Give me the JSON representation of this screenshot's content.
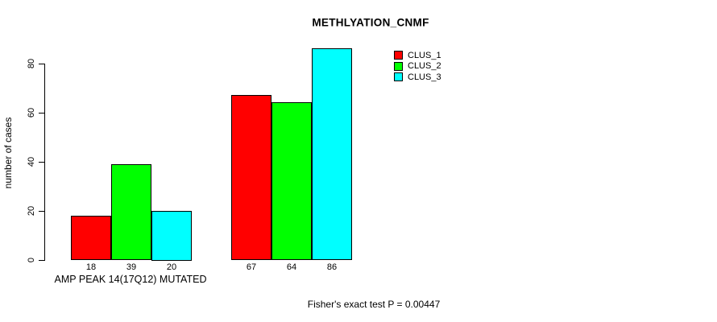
{
  "chart_data": {
    "type": "bar",
    "title": "METHLYATION_CNMF",
    "ylabel": "number of cases",
    "ylim": [
      0,
      80
    ],
    "yticks": [
      "0",
      "20",
      "40",
      "60",
      "80"
    ],
    "grid": false,
    "legend_position": "top-right-inside",
    "categories": [
      "AMP PEAK 14(17Q12) MUTATED",
      ""
    ],
    "series": [
      {
        "name": "CLUS_1",
        "color": "#FF0000",
        "values": [
          18,
          67
        ]
      },
      {
        "name": "CLUS_2",
        "color": "#00FF00",
        "values": [
          39,
          64
        ]
      },
      {
        "name": "CLUS_3",
        "color": "#00FFFF",
        "values": [
          20,
          86
        ]
      }
    ],
    "bar_value_labels": [
      [
        "18",
        "39",
        "20"
      ],
      [
        "67",
        "64",
        "86"
      ]
    ],
    "footer": "Fisher's exact test P = 0.00447"
  },
  "colors": {
    "background": "#FFFFFF",
    "axis": "#000000",
    "text": "#000000",
    "bar_border": "#000000"
  }
}
